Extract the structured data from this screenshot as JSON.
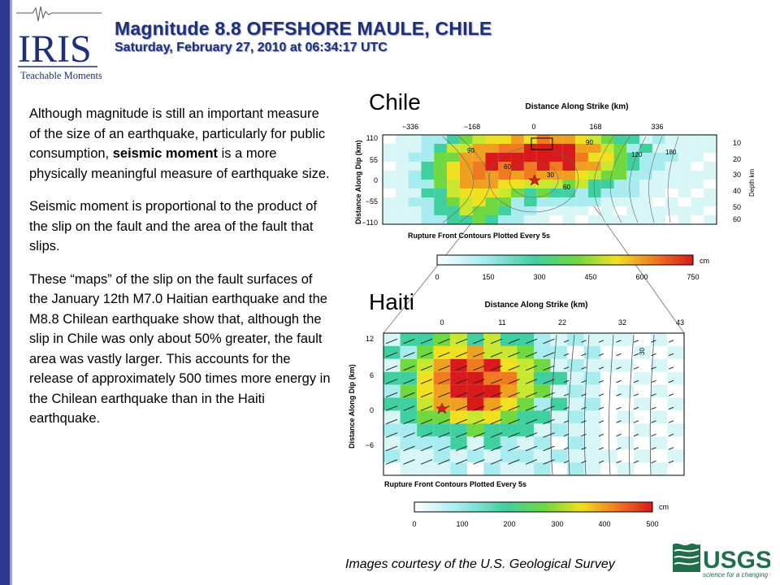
{
  "header": {
    "title": "Magnitude 8.8 OFFSHORE MAULE, CHILE",
    "subtitle": "Saturday,  February 27, 2010 at 06:34:17 UTC"
  },
  "logo": {
    "text": "IRIS",
    "tagline": "Teachable Moments"
  },
  "body": {
    "p1_a": "Although magnitude is still an important measure of the size of an earthquake, particularly for public consumption, ",
    "p1_bold": "seismic moment",
    "p1_b": " is a more physically meaningful measure of earthquake size.",
    "p2": "Seismic moment is proportional to the product of the slip on the fault and the area of the fault that slips.",
    "p3": "These “maps” of the slip on the fault surfaces of the January 12th M7.0 Haitian earthquake and the M8.8 Chilean earthquake show that, although the slip in Chile was only about 50% greater, the fault area was vastly larger. This accounts for the release of approximately 500 times more energy in the Chilean earthquake than in the Haiti earthquake."
  },
  "chile": {
    "label": "Chile",
    "xlabel": "Distance Along Strike (km)",
    "ylabel": "Distance Along Dip (km)",
    "y2label": "Depth km",
    "xticks": [
      "−336",
      "−168",
      "0",
      "168",
      "336"
    ],
    "yticks": [
      "110",
      "55",
      "0",
      "−55",
      "−110"
    ],
    "y2ticks": [
      "10",
      "20",
      "30",
      "40",
      "50",
      "60"
    ],
    "contours": [
      "90",
      "60",
      "30",
      "60",
      "90",
      "120",
      "180"
    ],
    "caption": "Rupture Front Contours Plotted Every 5s",
    "colorbar_ticks": [
      "0",
      "150",
      "300",
      "450",
      "600",
      "750"
    ],
    "colorbar_unit": "cm"
  },
  "haiti": {
    "label": "Haiti",
    "xlabel": "Distance Along Strike (km)",
    "ylabel": "Distance Along Dip (km)",
    "xticks": [
      "0",
      "11",
      "22",
      "32",
      "43"
    ],
    "yticks": [
      "12",
      "6",
      "0",
      "−6"
    ],
    "contours": [
      "30"
    ],
    "caption": "Rupture Front Contours Plotted Every 5s",
    "colorbar_ticks": [
      "0",
      "100",
      "200",
      "300",
      "400",
      "500"
    ],
    "colorbar_unit": "cm"
  },
  "credit": "Images courtesy of the U.S. Geological Survey",
  "usgs": {
    "name": "USGS",
    "tagline": "science for a changing world"
  },
  "colors": {
    "accent": "#1f2f7a",
    "bar": "#2b3990",
    "usgs_green": "#1e6f4a"
  }
}
